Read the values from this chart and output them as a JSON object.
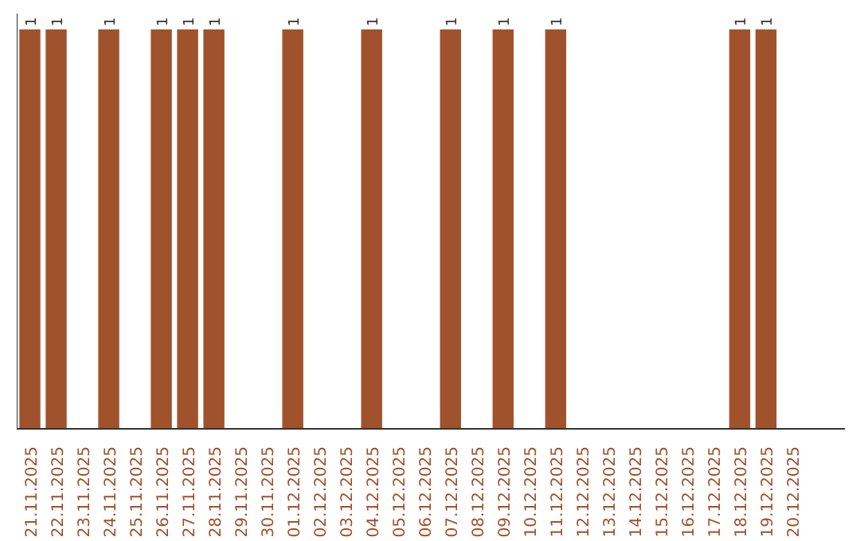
{
  "chart_data": {
    "type": "bar",
    "categories": [
      "21.11.2025",
      "22.11.2025",
      "23.11.2025",
      "24.11.2025",
      "25.11.2025",
      "26.11.2025",
      "27.11.2025",
      "28.11.2025",
      "29.11.2025",
      "30.11.2025",
      "01.12.2025",
      "02.12.2025",
      "03.12.2025",
      "04.12.2025",
      "05.12.2025",
      "06.12.2025",
      "07.12.2025",
      "08.12.2025",
      "09.12.2025",
      "10.12.2025",
      "11.12.2025",
      "12.12.2025",
      "13.12.2025",
      "14.12.2025",
      "15.12.2025",
      "16.12.2025",
      "17.12.2025",
      "18.12.2025",
      "19.12.2025",
      "20.12.2025"
    ],
    "values": [
      1,
      1,
      null,
      1,
      null,
      1,
      1,
      1,
      null,
      null,
      1,
      null,
      null,
      1,
      null,
      null,
      1,
      null,
      1,
      null,
      1,
      null,
      null,
      null,
      null,
      null,
      null,
      1,
      1,
      null
    ],
    "color": "#a0522d",
    "data_labels": true,
    "grid": false
  }
}
